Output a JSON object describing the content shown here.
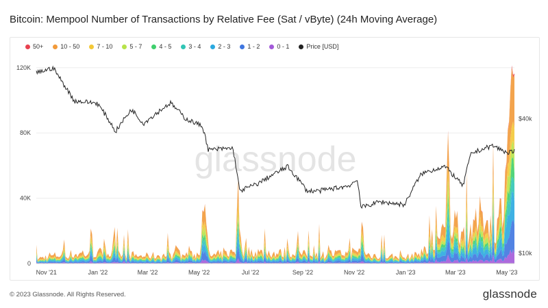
{
  "chart_data": {
    "type": "area",
    "title": "Bitcoin: Mempool Number of Transactions by Relative Fee (Sat / vByte) (24h Moving Average)",
    "watermark": "glassnode",
    "legend_position": "top-left",
    "grid": true,
    "x_labels": [
      "Nov '21",
      "Jan '22",
      "Mar '22",
      "May '22",
      "Jul '22",
      "Sep '22",
      "Nov '22",
      "Jan '23",
      "Mar '23",
      "May '23"
    ],
    "x_range": [
      "2021-10-20",
      "2023-05-10"
    ],
    "y_left": {
      "label": "",
      "ticks": [
        "0",
        "40K",
        "80K",
        "120K"
      ],
      "tick_values": [
        0,
        40000,
        80000,
        120000
      ],
      "range": [
        0,
        130000
      ]
    },
    "y_right": {
      "label": "",
      "ticks": [
        "$10k",
        "$40k"
      ],
      "tick_values": [
        10000,
        40000
      ],
      "scale": "log",
      "range": [
        9000,
        80000
      ]
    },
    "series": [
      {
        "name": "50+",
        "color": "#e8414f"
      },
      {
        "name": "10 - 50",
        "color": "#f29a3a"
      },
      {
        "name": "7 - 10",
        "color": "#f3c837"
      },
      {
        "name": "5 - 7",
        "color": "#b7e34a"
      },
      {
        "name": "4 - 5",
        "color": "#3fcf6d"
      },
      {
        "name": "3 - 4",
        "color": "#31c5b5"
      },
      {
        "name": "2 - 3",
        "color": "#2aa9e0"
      },
      {
        "name": "1 - 2",
        "color": "#3f76e0"
      },
      {
        "name": "0 - 1",
        "color": "#a35ad9"
      },
      {
        "name": "Price [USD]",
        "color": "#222222"
      }
    ],
    "price_usd": [
      [
        "2021-10-20",
        64000
      ],
      [
        "2021-11-09",
        67500
      ],
      [
        "2021-11-20",
        58000
      ],
      [
        "2021-12-04",
        48000
      ],
      [
        "2021-12-31",
        47000
      ],
      [
        "2022-01-22",
        35000
      ],
      [
        "2022-02-10",
        44000
      ],
      [
        "2022-02-24",
        38000
      ],
      [
        "2022-03-28",
        47000
      ],
      [
        "2022-04-15",
        40000
      ],
      [
        "2022-05-05",
        37000
      ],
      [
        "2022-05-12",
        29000
      ],
      [
        "2022-06-10",
        29500
      ],
      [
        "2022-06-18",
        19000
      ],
      [
        "2022-07-10",
        20500
      ],
      [
        "2022-08-14",
        24400
      ],
      [
        "2022-09-06",
        19000
      ],
      [
        "2022-09-20",
        19000
      ],
      [
        "2022-10-25",
        20000
      ],
      [
        "2022-11-05",
        21300
      ],
      [
        "2022-11-09",
        16000
      ],
      [
        "2022-12-01",
        17000
      ],
      [
        "2022-12-31",
        16500
      ],
      [
        "2023-01-20",
        22700
      ],
      [
        "2023-02-16",
        24500
      ],
      [
        "2023-03-10",
        20000
      ],
      [
        "2023-03-20",
        28000
      ],
      [
        "2023-04-14",
        30300
      ],
      [
        "2023-05-01",
        28200
      ],
      [
        "2023-05-07",
        28500
      ]
    ],
    "mempool_total_approx": [
      [
        "2021-10-20",
        3000
      ],
      [
        "2021-11-01",
        5000
      ],
      [
        "2021-12-01",
        6000
      ],
      [
        "2022-01-01",
        7000
      ],
      [
        "2022-03-01",
        5000
      ],
      [
        "2022-05-01",
        6000
      ],
      [
        "2022-05-08",
        33000
      ],
      [
        "2022-05-13",
        5000
      ],
      [
        "2022-06-14",
        8000
      ],
      [
        "2022-06-16",
        62000
      ],
      [
        "2022-06-20",
        8000
      ],
      [
        "2022-08-01",
        7000
      ],
      [
        "2022-10-01",
        6000
      ],
      [
        "2022-11-08",
        8000
      ],
      [
        "2022-11-10",
        29000
      ],
      [
        "2022-11-14",
        6000
      ],
      [
        "2023-01-01",
        4000
      ],
      [
        "2023-02-01",
        10000
      ],
      [
        "2023-03-01",
        30000
      ],
      [
        "2023-03-15",
        18000
      ],
      [
        "2023-04-01",
        32000
      ],
      [
        "2023-04-20",
        25000
      ],
      [
        "2023-04-30",
        60000
      ],
      [
        "2023-05-05",
        110000
      ],
      [
        "2023-05-08",
        128000
      ]
    ]
  },
  "footer": {
    "copyright": "© 2023 Glassnode. All Rights Reserved.",
    "logo_text": "glassnode"
  }
}
